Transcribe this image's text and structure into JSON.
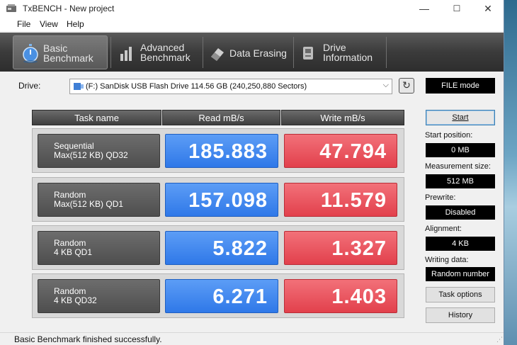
{
  "window": {
    "title": "TxBENCH - New project",
    "min": "—",
    "max": "☐",
    "close": "✕"
  },
  "menu": {
    "file": "File",
    "view": "View",
    "help": "Help"
  },
  "tabs": [
    {
      "label": "Basic\nBenchmark",
      "icon": "stopwatch-icon",
      "active": true
    },
    {
      "label": "Advanced\nBenchmark",
      "icon": "bar-chart-icon",
      "active": false
    },
    {
      "label": "Data Erasing",
      "icon": "eraser-icon",
      "active": false
    },
    {
      "label": "Drive\nInformation",
      "icon": "drive-info-icon",
      "active": false
    }
  ],
  "drive": {
    "label": "Drive:",
    "selected": "(F:) SanDisk USB Flash Drive  114.56 GB (240,250,880 Sectors)"
  },
  "file_mode": "FILE mode",
  "table": {
    "headers": {
      "task": "Task name",
      "read": "Read mB/s",
      "write": "Write mB/s"
    },
    "rows": [
      {
        "task": "Sequential\nMax(512 KB) QD32",
        "read": "185.883",
        "write": "47.794"
      },
      {
        "task": "Random\nMax(512 KB) QD1",
        "read": "157.098",
        "write": "11.579"
      },
      {
        "task": "Random\n4 KB QD1",
        "read": "5.822",
        "write": "1.327"
      },
      {
        "task": "Random\n4 KB QD32",
        "read": "6.271",
        "write": "1.403"
      }
    ]
  },
  "panel": {
    "start": "Start",
    "start_position_label": "Start position:",
    "start_position": "0 MB",
    "measurement_size_label": "Measurement size:",
    "measurement_size": "512 MB",
    "prewrite_label": "Prewrite:",
    "prewrite": "Disabled",
    "alignment_label": "Alignment:",
    "alignment": "4 KB",
    "writing_data_label": "Writing data:",
    "writing_data": "Random number",
    "task_options": "Task options",
    "history": "History"
  },
  "status": "Basic Benchmark finished successfully.",
  "colors": {
    "read": "#2f78e8",
    "write": "#e2404c",
    "tabbar": "#3b3b3b"
  }
}
